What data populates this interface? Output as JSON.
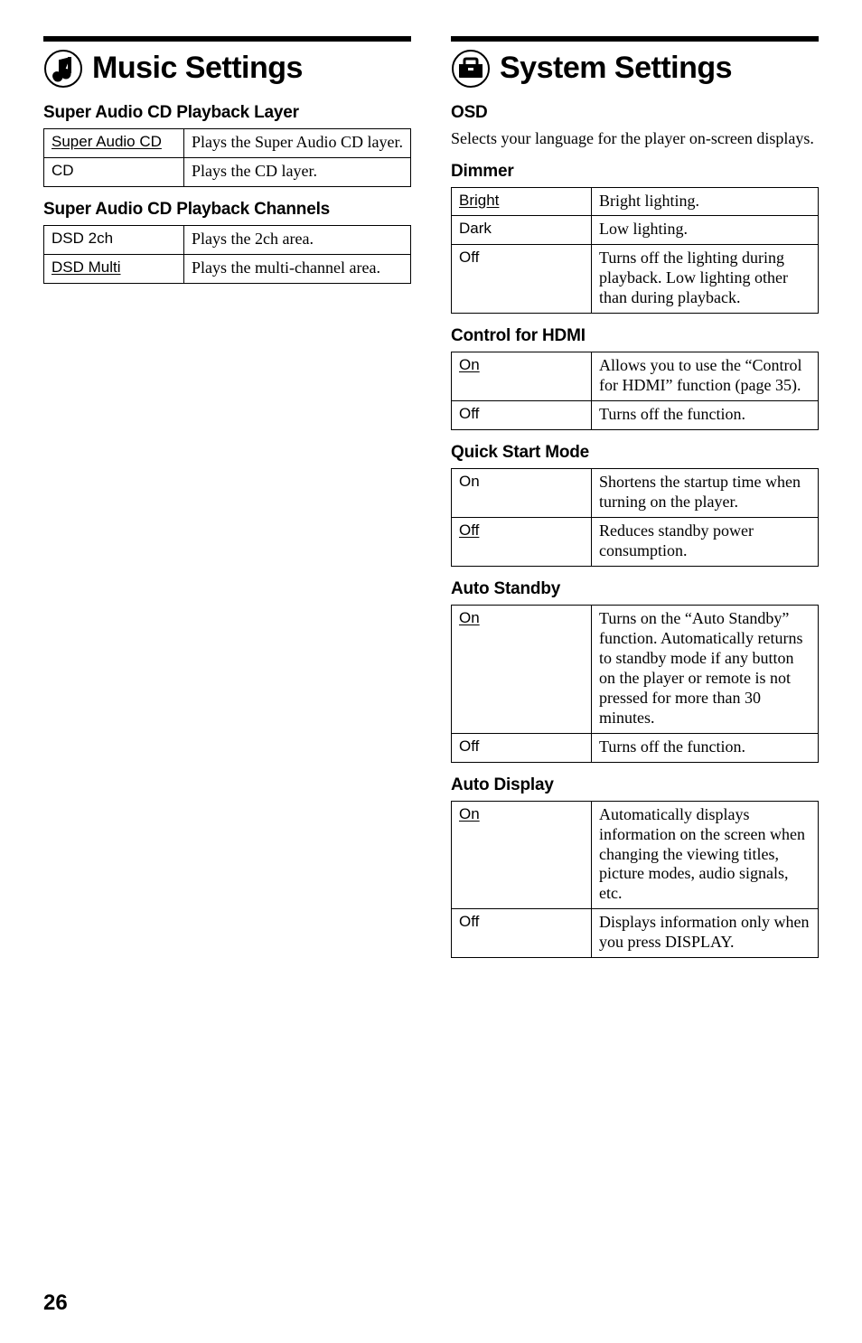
{
  "page_number": "26",
  "left": {
    "title": "Music Settings",
    "sections": [
      {
        "heading": "Super Audio CD Playback Layer",
        "rows": [
          {
            "key": "Super Audio CD",
            "key_default": true,
            "desc": "Plays the Super Audio CD layer."
          },
          {
            "key": "CD",
            "key_default": false,
            "desc": "Plays the CD layer."
          }
        ]
      },
      {
        "heading": "Super Audio CD Playback Channels",
        "rows": [
          {
            "key": "DSD 2ch",
            "key_default": false,
            "desc": "Plays the 2ch area."
          },
          {
            "key": "DSD Multi",
            "key_default": true,
            "desc": "Plays the multi-channel area."
          }
        ]
      }
    ]
  },
  "right": {
    "title": "System Settings",
    "sections": [
      {
        "heading": "OSD",
        "body": "Selects your language for the player on-screen displays.",
        "rows": []
      },
      {
        "heading": "Dimmer",
        "rows": [
          {
            "key": "Bright",
            "key_default": true,
            "desc": "Bright lighting."
          },
          {
            "key": "Dark",
            "key_default": false,
            "desc": "Low lighting."
          },
          {
            "key": "Off",
            "key_default": false,
            "desc": "Turns off the lighting during playback. Low lighting other than during playback."
          }
        ]
      },
      {
        "heading": "Control for HDMI",
        "rows": [
          {
            "key": "On",
            "key_default": true,
            "desc": "Allows you to use the “Control for HDMI” function (page 35)."
          },
          {
            "key": "Off",
            "key_default": false,
            "desc": "Turns off the function."
          }
        ]
      },
      {
        "heading": "Quick Start Mode",
        "rows": [
          {
            "key": "On",
            "key_default": false,
            "desc": "Shortens the startup time when turning on the player."
          },
          {
            "key": "Off",
            "key_default": true,
            "desc": "Reduces standby power consumption."
          }
        ]
      },
      {
        "heading": "Auto Standby",
        "rows": [
          {
            "key": "On",
            "key_default": true,
            "desc": "Turns on the “Auto Standby” function. Automatically returns to standby mode if any button on the player or remote is not pressed for more than 30 minutes."
          },
          {
            "key": "Off",
            "key_default": false,
            "desc": "Turns off the function."
          }
        ]
      },
      {
        "heading": "Auto Display",
        "rows": [
          {
            "key": "On",
            "key_default": true,
            "desc": "Automatically displays information on the screen when changing the viewing titles, picture modes, audio signals, etc."
          },
          {
            "key": "Off",
            "key_default": false,
            "desc": "Displays information only when you press DISPLAY."
          }
        ]
      }
    ]
  }
}
